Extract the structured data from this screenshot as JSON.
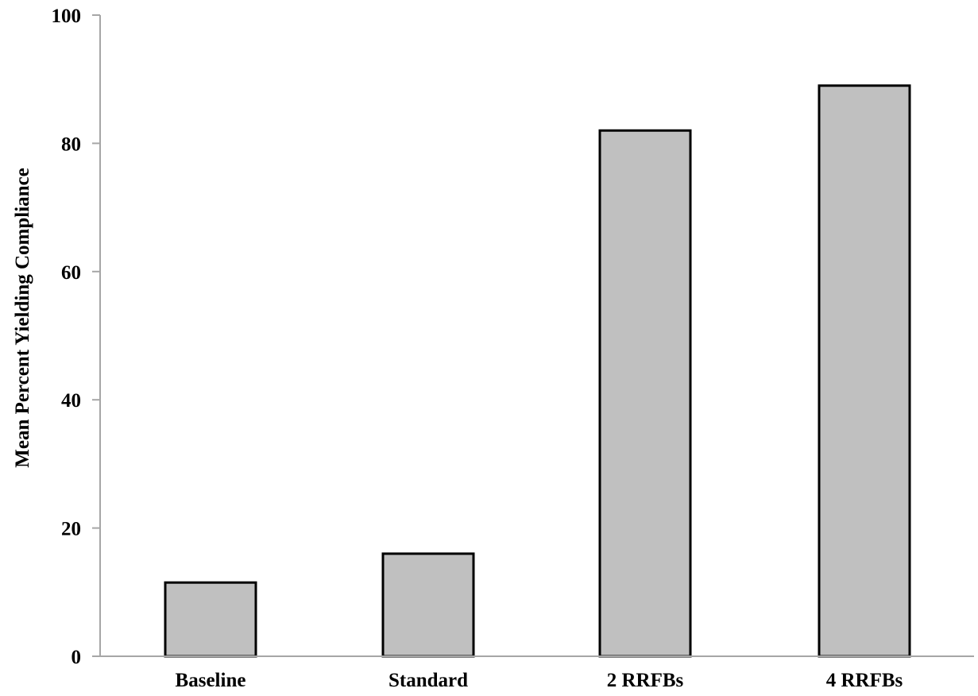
{
  "chart_data": {
    "type": "bar",
    "categories": [
      "Baseline",
      "Standard",
      "2 RRFBs",
      "4 RRFBs"
    ],
    "values": [
      11.5,
      16,
      82,
      89
    ],
    "title": "",
    "xlabel": "",
    "ylabel": "Mean Percent Yielding Compliance",
    "ylim": [
      0,
      100
    ],
    "yticks": [
      "0",
      "20",
      "40",
      "60",
      "80",
      "100"
    ],
    "grid": false,
    "legend": "none",
    "bar_color": "#c0c0c0",
    "bar_edge_color": "#000000",
    "axis_color": "#a6a6a6"
  }
}
